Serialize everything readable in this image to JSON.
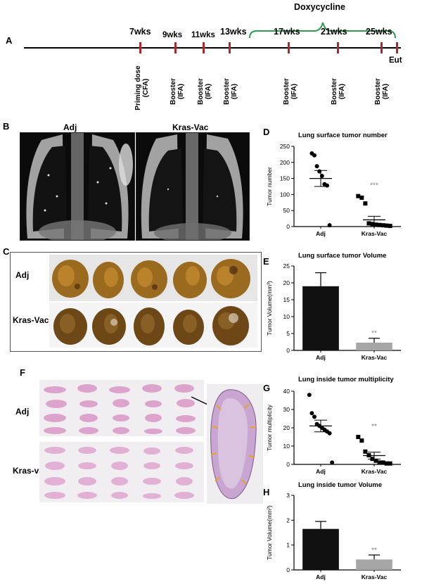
{
  "panel_letters": [
    "A",
    "B",
    "C",
    "D",
    "E",
    "F",
    "G",
    "H"
  ],
  "timeline": {
    "drug_label": "Doxycycline",
    "weeks": [
      "7wks",
      "9wks",
      "11wks",
      "13wks",
      "17wks",
      "21wks",
      "25wks"
    ],
    "eut_label": "Eut",
    "events": [
      {
        "line1": "Priming dose",
        "line2": "(CFA)"
      },
      {
        "line1": "Booster",
        "line2": "(IFA)"
      },
      {
        "line1": "Booster",
        "line2": "(IFA)"
      },
      {
        "line1": "Booster",
        "line2": "(IFA)"
      },
      {
        "line1": "Booster",
        "line2": "(IFA)"
      },
      {
        "line1": "Booster",
        "line2": "(IFA)"
      },
      {
        "line1": "Booster",
        "line2": "(IFA)"
      }
    ],
    "colors": {
      "tick": "#b3262b",
      "bracket": "#2e9e4f"
    }
  },
  "mri": {
    "left_label": "Adj",
    "right_label": "Kras-Vac"
  },
  "gross": {
    "row1": "Adj",
    "row2": "Kras-Vac"
  },
  "histology": {
    "row1": "Adj",
    "row2": "Kras-vac"
  },
  "chart_data": [
    {
      "id": "D",
      "type": "scatter",
      "title": "Lung surface tumor number",
      "ylabel": "Tumor number",
      "xlabel": "",
      "categories": [
        "Adj",
        "Kras-Vac"
      ],
      "ylim": [
        0,
        250
      ],
      "yticks": [
        0,
        50,
        100,
        150,
        200,
        250
      ],
      "series": [
        {
          "category": "Adj",
          "marker": "circle",
          "values": [
            228,
            222,
            188,
            172,
            158,
            132,
            128,
            4
          ],
          "mean": 150,
          "sem": 25
        },
        {
          "category": "Kras-Vac",
          "marker": "square",
          "values": [
            95,
            90,
            72,
            10,
            8,
            6,
            5,
            4,
            3,
            2
          ],
          "mean": 21,
          "sem": 11
        }
      ],
      "annotation": "***"
    },
    {
      "id": "E",
      "type": "bar",
      "title": "Lung surface tumor Volume",
      "ylabel": "Tumor Volume(mm³)",
      "xlabel": "",
      "categories": [
        "Adj",
        "Kras-Vac"
      ],
      "values": [
        19,
        2.3
      ],
      "errors": [
        4,
        1.3
      ],
      "colors": [
        "#111111",
        "#a6a6a6"
      ],
      "ylim": [
        0,
        25
      ],
      "yticks": [
        0,
        5,
        10,
        15,
        20,
        25
      ],
      "annotation": "**"
    },
    {
      "id": "G",
      "type": "scatter",
      "title": "Lung inside tumor multiplicity",
      "ylabel": "Tumor multiplicity",
      "xlabel": "",
      "categories": [
        "Adj",
        "Kras-Vac"
      ],
      "ylim": [
        0,
        40
      ],
      "yticks": [
        0,
        10,
        20,
        30,
        40
      ],
      "series": [
        {
          "category": "Adj",
          "marker": "circle",
          "values": [
            38,
            28,
            26,
            22,
            21,
            20,
            19,
            18,
            17,
            1
          ],
          "mean": 21,
          "sem": 3.2
        },
        {
          "category": "Kras-Vac",
          "marker": "square",
          "values": [
            15,
            13,
            7,
            5,
            3,
            2,
            1,
            1,
            0.5,
            0.5
          ],
          "mean": 4.8,
          "sem": 1.9
        }
      ],
      "annotation": "**"
    },
    {
      "id": "H",
      "type": "bar",
      "title": "Lung inside tumor Volume",
      "ylabel": "Tumor Volume(mm³)",
      "xlabel": "",
      "categories": [
        "Adj",
        "Kras-Vac"
      ],
      "values": [
        1.65,
        0.42
      ],
      "errors": [
        0.3,
        0.18
      ],
      "colors": [
        "#111111",
        "#a6a6a6"
      ],
      "ylim": [
        0,
        3
      ],
      "yticks": [
        0,
        1,
        2,
        3
      ],
      "annotation": "**"
    }
  ]
}
